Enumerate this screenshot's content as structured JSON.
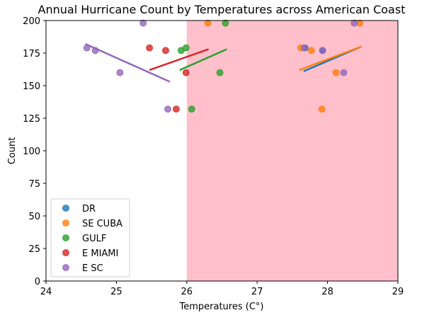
{
  "chart_data": {
    "type": "scatter",
    "title": "Annual Hurricane Count by Temperatures across American Coast",
    "xlabel": "Temperatures (C°)",
    "ylabel": "Count",
    "xlim": [
      24,
      29
    ],
    "ylim": [
      0,
      200
    ],
    "xticks": [
      24,
      25,
      26,
      27,
      28,
      29
    ],
    "yticks": [
      0,
      25,
      50,
      75,
      100,
      125,
      150,
      175,
      200
    ],
    "grid": false,
    "legend_position": "lower-left",
    "shaded_region": {
      "x_start": 26,
      "x_end": 29,
      "color": "#ffc0cb"
    },
    "series": [
      {
        "name": "DR",
        "color": "#1f77b4",
        "points": [
          [
            27.68,
            179
          ],
          [
            27.93,
            177
          ]
        ],
        "trend": [
          [
            27.66,
            161
          ],
          [
            28.48,
            180
          ]
        ]
      },
      {
        "name": "SE CUBA",
        "color": "#ff7f0e",
        "points": [
          [
            26.3,
            198
          ],
          [
            27.62,
            179
          ],
          [
            27.77,
            177
          ],
          [
            27.92,
            132
          ],
          [
            28.12,
            160
          ],
          [
            28.46,
            198
          ]
        ],
        "trend": [
          [
            27.6,
            162
          ],
          [
            28.48,
            180
          ]
        ]
      },
      {
        "name": "GULF",
        "color": "#2ca02c",
        "points": [
          [
            25.92,
            177
          ],
          [
            25.99,
            179
          ],
          [
            26.07,
            132
          ],
          [
            26.47,
            160
          ],
          [
            26.55,
            198
          ]
        ],
        "trend": [
          [
            25.9,
            162
          ],
          [
            26.57,
            178
          ]
        ]
      },
      {
        "name": "E MIAMI",
        "color": "#d62728",
        "points": [
          [
            25.47,
            179
          ],
          [
            25.7,
            177
          ],
          [
            25.85,
            132
          ],
          [
            25.99,
            160
          ]
        ],
        "trend": [
          [
            25.47,
            162
          ],
          [
            26.31,
            178
          ]
        ]
      },
      {
        "name": "E SC",
        "color": "#9467bd",
        "points": [
          [
            24.58,
            179
          ],
          [
            24.7,
            177
          ],
          [
            25.05,
            160
          ],
          [
            25.38,
            198
          ],
          [
            25.73,
            132
          ],
          [
            27.67,
            179
          ],
          [
            27.93,
            177
          ],
          [
            28.23,
            160
          ],
          [
            28.38,
            198
          ]
        ],
        "trend": [
          [
            24.56,
            182
          ],
          [
            25.76,
            153
          ]
        ]
      }
    ]
  }
}
